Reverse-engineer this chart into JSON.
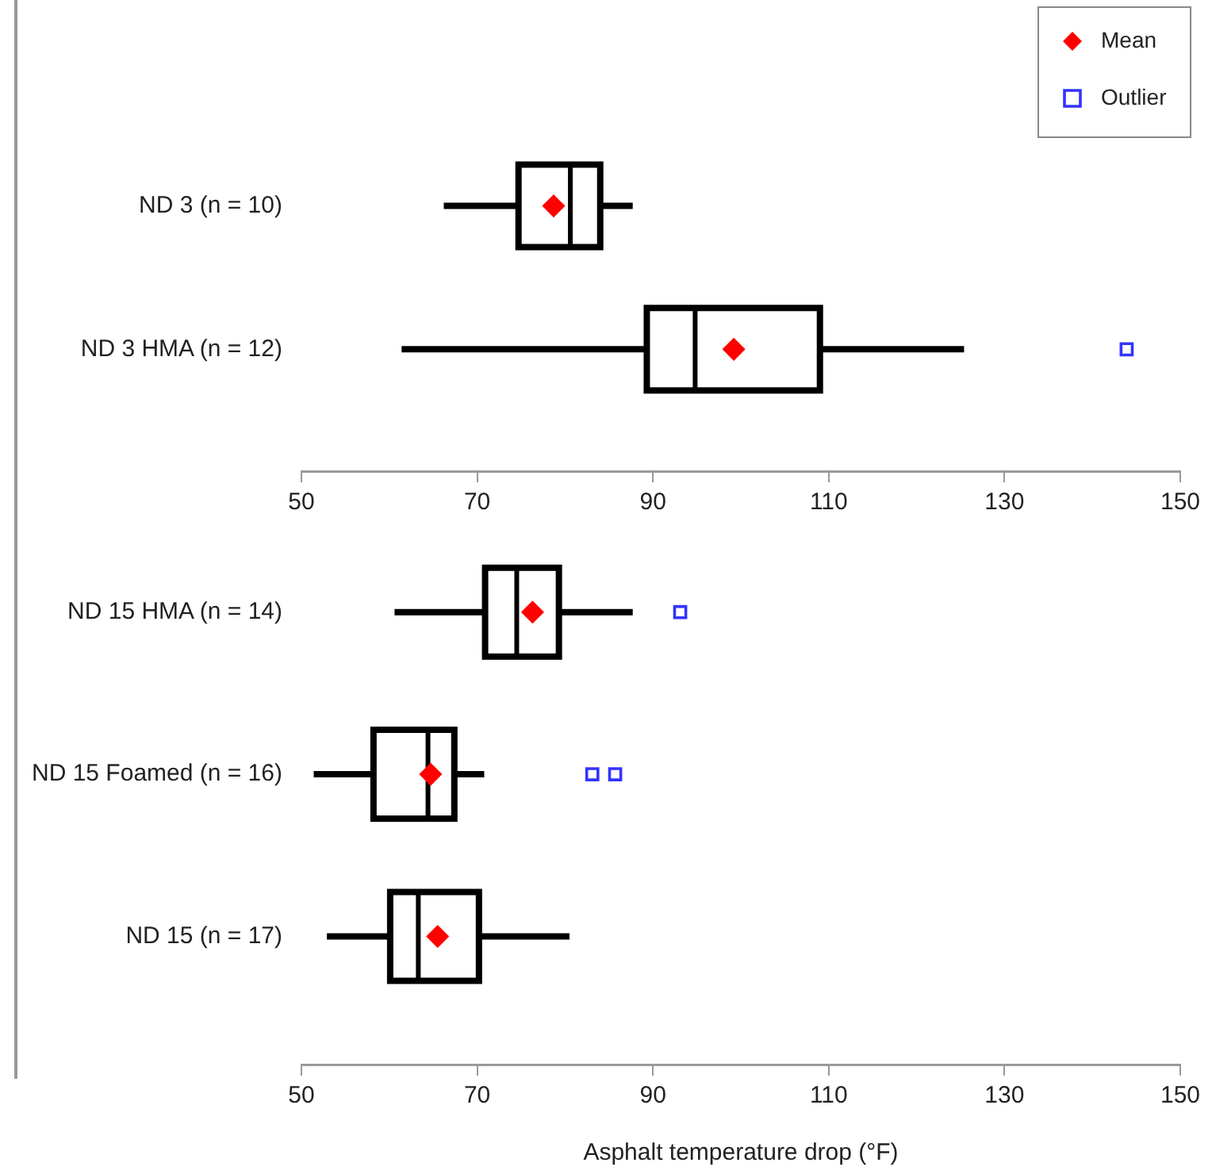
{
  "chart_data": [
    {
      "type": "box",
      "orientation": "horizontal",
      "categories": [
        "ND 3 (n = 10)",
        "ND 3 HMA (n = 12)"
      ],
      "boxes": [
        {
          "low": 66.2,
          "q1": 74.7,
          "median": 80.6,
          "q3": 84.0,
          "high": 87.7
        },
        {
          "low": 61.4,
          "q1": 89.3,
          "median": 94.8,
          "q3": 109.0,
          "high": 125.4
        }
      ],
      "series": [
        {
          "name": "Mean",
          "type": "scatter",
          "color": "#ff0000",
          "marker": "diamond",
          "values": [
            78.7,
            99.2
          ]
        },
        {
          "name": "Outlier",
          "type": "scatter",
          "color": "#3333ff",
          "marker": "square",
          "x": [
            "ND 3 HMA (n = 12)"
          ],
          "values": [
            143.9
          ]
        }
      ],
      "xlim": [
        50,
        150
      ],
      "xticks": [
        50,
        70,
        90,
        110,
        130,
        150
      ],
      "grid": false,
      "legend": "top right"
    },
    {
      "type": "box",
      "orientation": "horizontal",
      "categories": [
        "ND 15 HMA (n = 14)",
        "ND 15 Foamed (n = 16)",
        "ND 15 (n = 17)"
      ],
      "boxes": [
        {
          "low": 60.6,
          "q1": 70.9,
          "median": 74.5,
          "q3": 79.3,
          "high": 87.7
        },
        {
          "low": 51.4,
          "q1": 58.2,
          "median": 64.4,
          "q3": 67.4,
          "high": 70.8
        },
        {
          "low": 52.9,
          "q1": 60.1,
          "median": 63.3,
          "q3": 70.2,
          "high": 80.5
        }
      ],
      "series": [
        {
          "type": "scatter",
          "color": "#ff0000",
          "marker": "diamond",
          "values": [
            76.3,
            64.7,
            65.5
          ]
        },
        {
          "type": "scatter",
          "color": "#3333ff",
          "marker": "square",
          "x": [
            "ND 15 HMA (n = 14)",
            "ND 15 Foamed (n = 16)",
            "ND 15 Foamed (n = 16)"
          ],
          "values": [
            93.1,
            83.1,
            85.7
          ]
        }
      ],
      "xlim": [
        50,
        150
      ],
      "xticks": [
        50,
        70,
        90,
        110,
        130,
        150
      ],
      "grid": false,
      "legend": false,
      "xlabel": "Asphalt temperature drop (°F)"
    }
  ]
}
